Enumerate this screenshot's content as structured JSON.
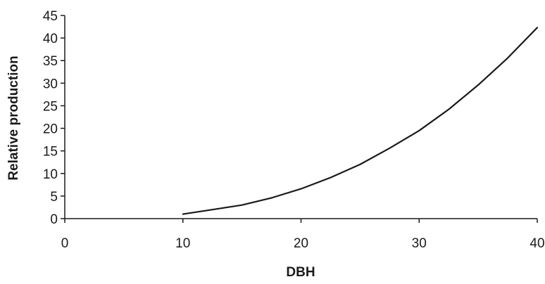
{
  "chart_data": {
    "type": "line",
    "title": "",
    "xlabel": "DBH",
    "ylabel": "Relative production",
    "xlim": [
      0,
      40
    ],
    "ylim": [
      0,
      45
    ],
    "x_ticks": [
      0,
      10,
      20,
      30,
      40
    ],
    "y_ticks": [
      0,
      5,
      10,
      15,
      20,
      25,
      30,
      35,
      40,
      45
    ],
    "grid": false,
    "legend": "none",
    "line_color": "#1a1a1a",
    "series": [
      {
        "x": [
          10,
          12.5,
          15,
          17.5,
          20,
          22.5,
          25,
          27.5,
          30,
          32.5,
          35,
          37.5,
          40
        ],
        "y": [
          1,
          2,
          3,
          4.6,
          6.6,
          9.1,
          12,
          15.6,
          19.5,
          24.2,
          29.6,
          35.6,
          42.3
        ]
      }
    ]
  }
}
